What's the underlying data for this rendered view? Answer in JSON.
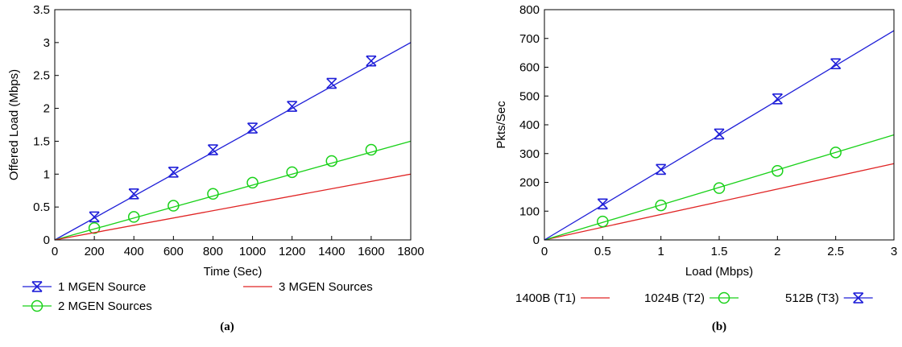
{
  "captions": [
    "(a)",
    "(b)"
  ],
  "colors": {
    "blue": "#1f1fd8",
    "green": "#19d119",
    "red": "#e02424",
    "axis": "#000000"
  },
  "chart_data": [
    {
      "type": "line",
      "xlabel": "Time (Sec)",
      "ylabel": "Offered Load (Mbps)",
      "xlim": [
        0,
        1800
      ],
      "ylim": [
        0,
        3.5
      ],
      "xticks": [
        0,
        200,
        400,
        600,
        800,
        1000,
        1200,
        1400,
        1600,
        1800
      ],
      "yticks": [
        0,
        0.5,
        1,
        1.5,
        2,
        2.5,
        3,
        3.5
      ],
      "legend_placement": "bottom",
      "series": [
        {
          "name": "1 MGEN Source",
          "color": "#1f1fd8",
          "marker": "x",
          "x": [
            0,
            1800
          ],
          "y": [
            0,
            3.0
          ],
          "marker_x": [
            200,
            400,
            600,
            800,
            1000,
            1200,
            1400,
            1600
          ],
          "marker_y": [
            0.35,
            0.7,
            1.03,
            1.37,
            1.7,
            2.03,
            2.38,
            2.72
          ]
        },
        {
          "name": "2 MGEN Sources",
          "color": "#19d119",
          "marker": "circle",
          "x": [
            0,
            1800
          ],
          "y": [
            0,
            1.5
          ],
          "marker_x": [
            200,
            400,
            600,
            800,
            1000,
            1200,
            1400,
            1600
          ],
          "marker_y": [
            0.18,
            0.35,
            0.52,
            0.7,
            0.87,
            1.03,
            1.2,
            1.37
          ]
        },
        {
          "name": "3 MGEN Sources",
          "color": "#e02424",
          "marker": "none",
          "x": [
            0,
            1800
          ],
          "y": [
            0,
            1.0
          ],
          "marker_x": [],
          "marker_y": []
        }
      ]
    },
    {
      "type": "line",
      "xlabel": "Load (Mbps)",
      "ylabel": "Pkts/Sec",
      "xlim": [
        0,
        3
      ],
      "ylim": [
        0,
        800
      ],
      "xticks": [
        0,
        0.5,
        1,
        1.5,
        2,
        2.5,
        3
      ],
      "yticks": [
        0,
        100,
        200,
        300,
        400,
        500,
        600,
        700,
        800
      ],
      "legend_placement": "bottom",
      "series": [
        {
          "name": "1400B (T1)",
          "color": "#e02424",
          "marker": "none",
          "x": [
            0,
            3
          ],
          "y": [
            0,
            265
          ],
          "marker_x": [],
          "marker_y": []
        },
        {
          "name": "1024B (T2)",
          "color": "#19d119",
          "marker": "circle",
          "x": [
            0,
            3
          ],
          "y": [
            0,
            365
          ],
          "marker_x": [
            0.5,
            1,
            1.5,
            2,
            2.5
          ],
          "marker_y": [
            64,
            120,
            180,
            240,
            304
          ]
        },
        {
          "name": "512B (T3)",
          "color": "#1f1fd8",
          "marker": "x",
          "x": [
            0,
            3
          ],
          "y": [
            0,
            727
          ],
          "marker_x": [
            0.5,
            1,
            1.5,
            2,
            2.5
          ],
          "marker_y": [
            125,
            245,
            368,
            490,
            612
          ]
        }
      ]
    }
  ]
}
